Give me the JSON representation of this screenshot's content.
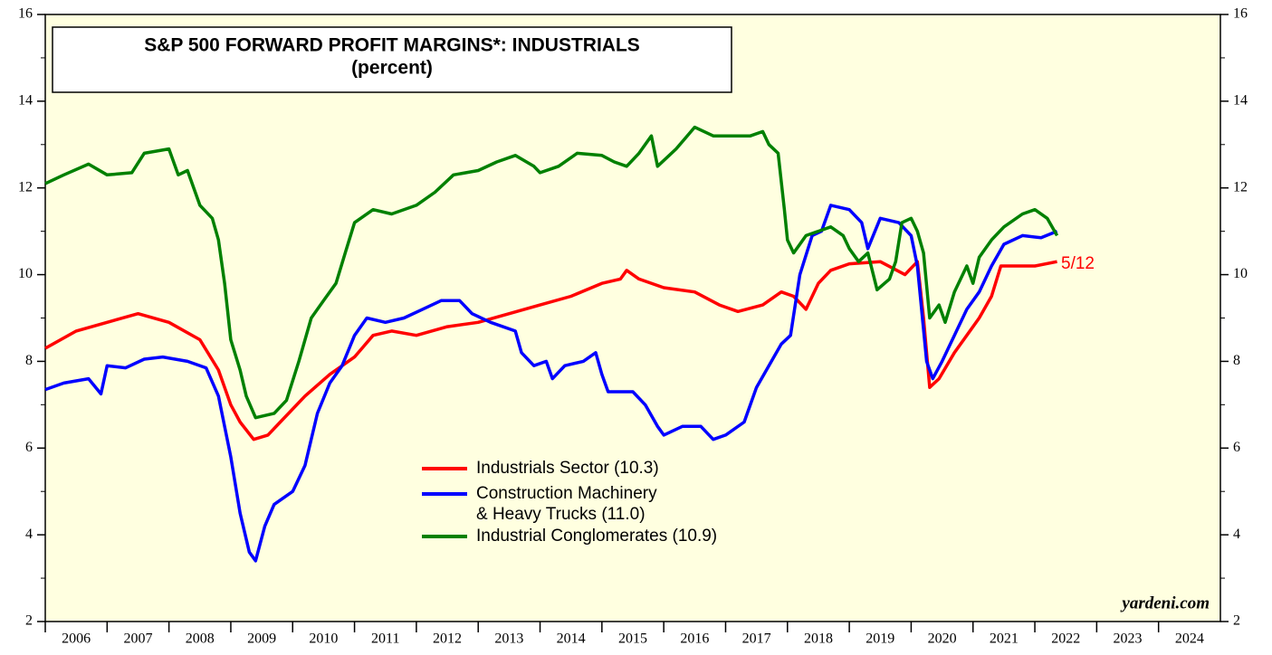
{
  "chart_data": {
    "type": "line",
    "title": "S&P 500 FORWARD PROFIT MARGINS*: INDUSTRIALS",
    "subtitle": "(percent)",
    "annotation": "5/12",
    "source": "yardeni.com",
    "xlim": [
      2006,
      2025
    ],
    "xticks": [
      2006,
      2007,
      2008,
      2009,
      2010,
      2011,
      2012,
      2013,
      2014,
      2015,
      2016,
      2017,
      2018,
      2019,
      2020,
      2021,
      2022,
      2023,
      2024
    ],
    "ylim": [
      2,
      16
    ],
    "yticks": [
      2,
      4,
      6,
      8,
      10,
      12,
      14,
      16
    ],
    "yminor_ticks": [
      3,
      5,
      7,
      9,
      11,
      13,
      15
    ],
    "series": [
      {
        "name": "Industrials Sector (10.3)",
        "color": "#ff0000",
        "x": [
          2006.0,
          2006.5,
          2007.0,
          2007.5,
          2008.0,
          2008.5,
          2008.8,
          2009.0,
          2009.15,
          2009.37,
          2009.6,
          2009.8,
          2010.2,
          2010.6,
          2011.0,
          2011.3,
          2011.6,
          2012.0,
          2012.5,
          2013.0,
          2013.5,
          2014.0,
          2014.5,
          2015.0,
          2015.3,
          2015.4,
          2015.6,
          2016.0,
          2016.5,
          2016.9,
          2017.2,
          2017.6,
          2017.9,
          2018.1,
          2018.3,
          2018.5,
          2018.7,
          2019.0,
          2019.5,
          2019.9,
          2020.1,
          2020.2,
          2020.3,
          2020.45,
          2020.7,
          2020.9,
          2021.1,
          2021.3,
          2021.45,
          2021.7,
          2022.0,
          2022.36
        ],
        "values": [
          8.3,
          8.7,
          8.9,
          9.1,
          8.9,
          8.5,
          7.8,
          7.0,
          6.6,
          6.2,
          6.3,
          6.6,
          7.2,
          7.7,
          8.1,
          8.6,
          8.7,
          8.6,
          8.8,
          8.9,
          9.1,
          9.3,
          9.5,
          9.8,
          9.9,
          10.1,
          9.9,
          9.7,
          9.6,
          9.3,
          9.15,
          9.3,
          9.6,
          9.5,
          9.2,
          9.8,
          10.1,
          10.25,
          10.3,
          10.0,
          10.3,
          9.0,
          7.4,
          7.6,
          8.2,
          8.6,
          9.0,
          9.5,
          10.2,
          10.2,
          10.2,
          10.3
        ]
      },
      {
        "name": "Construction Machinery\n& Heavy Trucks (11.0)",
        "color": "#0000ff",
        "x": [
          2006.0,
          2006.3,
          2006.7,
          2006.9,
          2007.0,
          2007.3,
          2007.6,
          2007.9,
          2008.3,
          2008.6,
          2008.8,
          2009.0,
          2009.15,
          2009.3,
          2009.4,
          2009.55,
          2009.7,
          2010.0,
          2010.2,
          2010.4,
          2010.6,
          2010.8,
          2011.0,
          2011.2,
          2011.5,
          2011.8,
          2012.1,
          2012.4,
          2012.7,
          2012.9,
          2013.2,
          2013.6,
          2013.7,
          2013.9,
          2014.1,
          2014.2,
          2014.4,
          2014.7,
          2014.9,
          2015.0,
          2015.1,
          2015.5,
          2015.7,
          2015.9,
          2016.0,
          2016.3,
          2016.6,
          2016.8,
          2017.0,
          2017.3,
          2017.5,
          2017.7,
          2017.9,
          2018.05,
          2018.2,
          2018.4,
          2018.55,
          2018.7,
          2019.0,
          2019.2,
          2019.3,
          2019.5,
          2019.8,
          2020.0,
          2020.1,
          2020.25,
          2020.35,
          2020.5,
          2020.7,
          2020.9,
          2021.1,
          2021.3,
          2021.5,
          2021.8,
          2022.1,
          2022.36
        ],
        "values": [
          7.35,
          7.5,
          7.6,
          7.25,
          7.9,
          7.85,
          8.05,
          8.1,
          8.0,
          7.85,
          7.2,
          5.8,
          4.5,
          3.6,
          3.4,
          4.2,
          4.7,
          5.0,
          5.6,
          6.8,
          7.5,
          7.9,
          8.6,
          9.0,
          8.9,
          9.0,
          9.2,
          9.4,
          9.4,
          9.1,
          8.9,
          8.7,
          8.2,
          7.9,
          8.0,
          7.6,
          7.9,
          8.0,
          8.2,
          7.7,
          7.3,
          7.3,
          7.0,
          6.5,
          6.3,
          6.5,
          6.5,
          6.2,
          6.3,
          6.6,
          7.4,
          7.9,
          8.4,
          8.6,
          10.0,
          10.9,
          11.0,
          11.6,
          11.5,
          11.2,
          10.6,
          11.3,
          11.2,
          10.9,
          10.2,
          8.0,
          7.6,
          8.0,
          8.6,
          9.2,
          9.6,
          10.2,
          10.7,
          10.9,
          10.85,
          11.0
        ]
      },
      {
        "name": "Industrial Conglomerates (10.9)",
        "color": "#008000",
        "x": [
          2006.0,
          2006.3,
          2006.7,
          2007.0,
          2007.4,
          2007.6,
          2008.0,
          2008.15,
          2008.3,
          2008.5,
          2008.7,
          2008.8,
          2008.9,
          2009.0,
          2009.15,
          2009.25,
          2009.4,
          2009.7,
          2009.9,
          2010.1,
          2010.3,
          2010.5,
          2010.7,
          2010.85,
          2011.0,
          2011.3,
          2011.6,
          2012.0,
          2012.3,
          2012.6,
          2013.0,
          2013.3,
          2013.6,
          2013.9,
          2014.0,
          2014.3,
          2014.6,
          2015.0,
          2015.2,
          2015.4,
          2015.6,
          2015.8,
          2015.9,
          2016.2,
          2016.5,
          2016.8,
          2017.1,
          2017.4,
          2017.6,
          2017.7,
          2017.85,
          2017.95,
          2018.0,
          2018.1,
          2018.3,
          2018.5,
          2018.7,
          2018.9,
          2019.0,
          2019.15,
          2019.3,
          2019.45,
          2019.65,
          2019.75,
          2019.85,
          2020.0,
          2020.1,
          2020.2,
          2020.3,
          2020.45,
          2020.55,
          2020.7,
          2020.9,
          2021.0,
          2021.1,
          2021.3,
          2021.5,
          2021.8,
          2022.0,
          2022.2,
          2022.36
        ],
        "values": [
          12.1,
          12.3,
          12.55,
          12.3,
          12.35,
          12.8,
          12.9,
          12.3,
          12.4,
          11.6,
          11.3,
          10.8,
          9.8,
          8.5,
          7.8,
          7.2,
          6.7,
          6.8,
          7.1,
          8.0,
          9.0,
          9.4,
          9.8,
          10.5,
          11.2,
          11.5,
          11.4,
          11.6,
          11.9,
          12.3,
          12.4,
          12.6,
          12.75,
          12.5,
          12.35,
          12.5,
          12.8,
          12.75,
          12.6,
          12.5,
          12.8,
          13.2,
          12.5,
          12.9,
          13.4,
          13.2,
          13.2,
          13.2,
          13.3,
          13.0,
          12.8,
          11.5,
          10.8,
          10.5,
          10.9,
          11.0,
          11.1,
          10.9,
          10.6,
          10.3,
          10.5,
          9.65,
          9.9,
          10.3,
          11.2,
          11.3,
          11.0,
          10.5,
          9.0,
          9.3,
          8.9,
          9.6,
          10.2,
          9.8,
          10.4,
          10.8,
          11.1,
          11.4,
          11.5,
          11.3,
          10.9
        ]
      }
    ]
  }
}
